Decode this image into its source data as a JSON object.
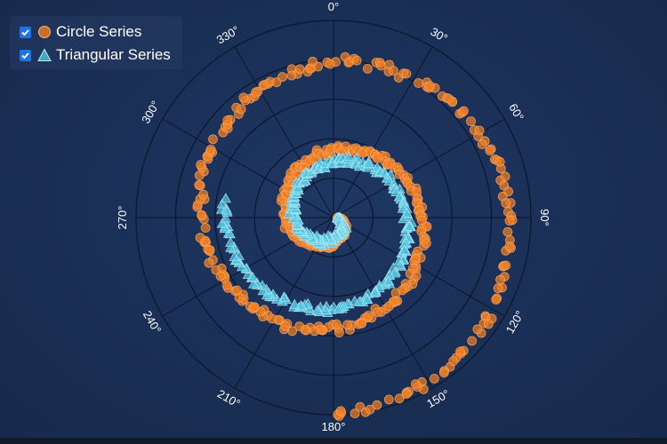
{
  "chart_data": {
    "type": "scatter",
    "coordinate_system": "polar",
    "angular_axis": {
      "unit": "degrees",
      "direction": "clockwise",
      "zero_at": "top",
      "tick_labels": [
        "0°",
        "30°",
        "60°",
        "90°",
        "120°",
        "150°",
        "180°",
        "210°",
        "240°",
        "270°",
        "300°",
        "330°"
      ]
    },
    "radial_axis": {
      "range": [
        0,
        1
      ],
      "grid_rings": 5,
      "labels_visible": false
    },
    "legend": {
      "placement": "top-left"
    },
    "series": [
      {
        "name": "Circle Series",
        "marker": "circle",
        "color": "#f07f22",
        "spiral": {
          "angle_start_deg": 90,
          "angle_end_deg": 900,
          "radius_start": 0.02,
          "radius_end": 1.0,
          "count": 460,
          "jitter": 0.035
        }
      },
      {
        "name": "Triangular Series",
        "marker": "triangle",
        "color": "#4fc3df",
        "spiral": {
          "angle_start_deg": 90,
          "angle_end_deg": 640,
          "radius_start": 0.02,
          "radius_end": 0.56,
          "count": 340,
          "jitter": 0.03
        }
      }
    ]
  },
  "legend": {
    "items": [
      {
        "label": "Circle Series",
        "checked": true
      },
      {
        "label": "Triangular Series",
        "checked": true
      }
    ]
  },
  "colors": {
    "circle_fill": "#f07f22",
    "triangle_fill": "#4fc3df",
    "grid_line": "#0d1a33",
    "checkbox": "#1a73e8"
  }
}
